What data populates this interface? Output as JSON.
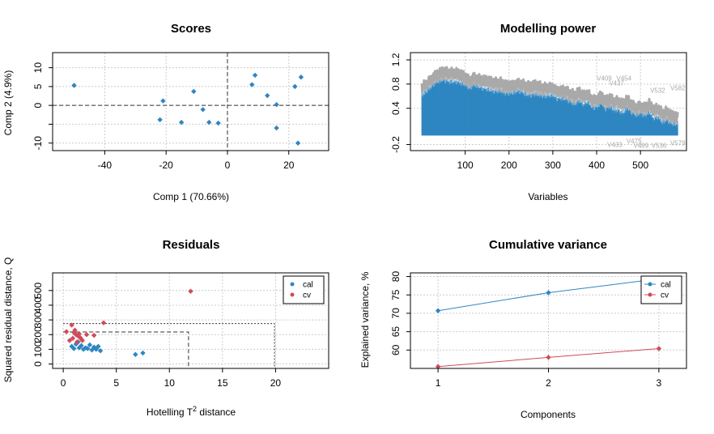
{
  "colors": {
    "cal": "#2e86c1",
    "cv": "#d14a5a",
    "bar": "#2e86c1",
    "line_gray": "#a9a9a9"
  },
  "chart_data": [
    {
      "id": "scores",
      "type": "scatter",
      "title": "Scores",
      "xlabel": "Comp 1 (70.66%)",
      "ylabel": "Comp 2 (4.9%)",
      "xlim": [
        -57,
        33
      ],
      "ylim": [
        -12,
        14
      ],
      "xticks": [
        -40,
        -20,
        0,
        20
      ],
      "yticks": [
        -10,
        -5,
        0,
        5,
        10
      ],
      "ytick_labels": [
        "-10",
        "",
        "0",
        "5",
        "10"
      ],
      "grid": true,
      "reference_lines": {
        "x": 0,
        "y": 0
      },
      "points": [
        {
          "x": -50,
          "y": 5.3
        },
        {
          "x": -21,
          "y": 1.2
        },
        {
          "x": -22,
          "y": -3.8
        },
        {
          "x": -15,
          "y": -4.5
        },
        {
          "x": -11,
          "y": 3.7
        },
        {
          "x": -8,
          "y": -1.1
        },
        {
          "x": -6,
          "y": -4.5
        },
        {
          "x": -3,
          "y": -4.7
        },
        {
          "x": 8,
          "y": 5.5
        },
        {
          "x": 9,
          "y": 8.0
        },
        {
          "x": 13,
          "y": 2.6
        },
        {
          "x": 16,
          "y": 0.2
        },
        {
          "x": 16,
          "y": -6.0
        },
        {
          "x": 22,
          "y": 5.0
        },
        {
          "x": 24,
          "y": 7.5
        },
        {
          "x": 23,
          "y": -10.0
        }
      ]
    },
    {
      "id": "modelling-power",
      "type": "bar",
      "title": "Modelling power",
      "xlabel": "Variables",
      "ylabel": "",
      "xlim": [
        -25,
        605
      ],
      "ylim": [
        -0.3,
        1.32
      ],
      "xticks": [
        100,
        200,
        300,
        400,
        500
      ],
      "yticks": [
        -0.2,
        0.4,
        0.8,
        1.2
      ],
      "ytick_labels": [
        "-0.2",
        "0.4",
        "0.8",
        "1.2"
      ],
      "grid": true,
      "n_variables": 585,
      "profile": {
        "x": [
          1,
          10,
          20,
          30,
          40,
          50,
          60,
          70,
          80,
          90,
          100,
          110,
          120,
          130,
          140,
          150,
          160,
          170,
          180,
          190,
          200,
          210,
          220,
          230,
          240,
          250,
          260,
          270,
          280,
          290,
          300,
          310,
          320,
          330,
          340,
          350,
          360,
          370,
          380,
          390,
          400,
          410,
          420,
          430,
          440,
          450,
          460,
          470,
          480,
          490,
          500,
          510,
          520,
          530,
          540,
          550,
          560,
          570,
          585
        ],
        "y": [
          0.63,
          0.68,
          0.75,
          0.82,
          0.86,
          0.88,
          0.86,
          0.85,
          0.85,
          0.83,
          0.8,
          0.74,
          0.8,
          0.77,
          0.74,
          0.73,
          0.7,
          0.69,
          0.7,
          0.66,
          0.66,
          0.67,
          0.7,
          0.68,
          0.64,
          0.63,
          0.65,
          0.63,
          0.61,
          0.62,
          0.63,
          0.57,
          0.58,
          0.56,
          0.52,
          0.48,
          0.54,
          0.47,
          0.52,
          0.42,
          0.43,
          0.5,
          0.4,
          0.44,
          0.38,
          0.38,
          0.33,
          0.42,
          0.34,
          0.3,
          0.33,
          0.29,
          0.35,
          0.24,
          0.27,
          0.18,
          0.22,
          0.16,
          0.15
        ]
      },
      "labels": [
        {
          "text": "V409",
          "x": 400,
          "y": 0.86
        },
        {
          "text": "V454",
          "x": 445,
          "y": 0.86
        },
        {
          "text": "V437",
          "x": 428,
          "y": 0.78
        },
        {
          "text": "V532",
          "x": 522,
          "y": 0.66
        },
        {
          "text": "V582",
          "x": 568,
          "y": 0.7
        },
        {
          "text": "V433",
          "x": 424,
          "y": -0.24
        },
        {
          "text": "V475",
          "x": 468,
          "y": -0.18
        },
        {
          "text": "V489",
          "x": 484,
          "y": -0.25
        },
        {
          "text": "V536",
          "x": 525,
          "y": -0.25
        },
        {
          "text": "V579",
          "x": 568,
          "y": -0.21
        }
      ]
    },
    {
      "id": "residuals",
      "type": "scatter",
      "title": "Residuals",
      "xlabel": "Hotelling T",
      "xlabel_sup": "2",
      "xlabel_suffix": " distance",
      "ylabel": "Squared residual distance, Q",
      "xlim": [
        -1,
        25
      ],
      "ylim": [
        -30,
        620
      ],
      "xticks": [
        0,
        5,
        10,
        15,
        20
      ],
      "yticks": [
        0,
        100,
        200,
        300,
        400,
        500
      ],
      "ytick_labels": [
        "0",
        "100",
        "200",
        "300",
        "400",
        "500"
      ],
      "grid": true,
      "legend": {
        "position": "top-right",
        "entries": [
          "cal",
          "cv"
        ]
      },
      "limits": [
        {
          "x": 11.8,
          "y": 218
        },
        {
          "x": 19.9,
          "y": 275
        }
      ],
      "series": [
        {
          "name": "cal",
          "points": [
            {
              "x": 0.8,
              "y": 120
            },
            {
              "x": 1.0,
              "y": 105
            },
            {
              "x": 1.2,
              "y": 135
            },
            {
              "x": 1.4,
              "y": 150
            },
            {
              "x": 1.5,
              "y": 110
            },
            {
              "x": 1.7,
              "y": 125
            },
            {
              "x": 1.9,
              "y": 100
            },
            {
              "x": 2.1,
              "y": 110
            },
            {
              "x": 2.3,
              "y": 105
            },
            {
              "x": 2.5,
              "y": 130
            },
            {
              "x": 2.7,
              "y": 95
            },
            {
              "x": 2.9,
              "y": 115
            },
            {
              "x": 3.1,
              "y": 100
            },
            {
              "x": 3.3,
              "y": 120
            },
            {
              "x": 3.5,
              "y": 90
            },
            {
              "x": 6.8,
              "y": 65
            },
            {
              "x": 7.5,
              "y": 75
            }
          ]
        },
        {
          "name": "cv",
          "points": [
            {
              "x": 0.3,
              "y": 220
            },
            {
              "x": 0.6,
              "y": 160
            },
            {
              "x": 0.8,
              "y": 265
            },
            {
              "x": 0.9,
              "y": 175
            },
            {
              "x": 1.0,
              "y": 215
            },
            {
              "x": 1.1,
              "y": 230
            },
            {
              "x": 1.2,
              "y": 200
            },
            {
              "x": 1.3,
              "y": 150
            },
            {
              "x": 1.4,
              "y": 190
            },
            {
              "x": 1.5,
              "y": 205
            },
            {
              "x": 1.6,
              "y": 180
            },
            {
              "x": 1.7,
              "y": 170
            },
            {
              "x": 1.8,
              "y": 160
            },
            {
              "x": 2.2,
              "y": 200
            },
            {
              "x": 2.9,
              "y": 195
            },
            {
              "x": 3.8,
              "y": 280
            },
            {
              "x": 12.0,
              "y": 495
            }
          ]
        }
      ]
    },
    {
      "id": "cumulative-variance",
      "type": "line",
      "title": "Cumulative variance",
      "xlabel": "Components",
      "ylabel": "Explained variance, %",
      "xlim": [
        0.75,
        3.25
      ],
      "ylim": [
        55,
        81
      ],
      "xticks": [
        1,
        2,
        3
      ],
      "yticks": [
        60,
        65,
        70,
        75,
        80
      ],
      "ytick_labels": [
        "60",
        "65",
        "70",
        "75",
        "80"
      ],
      "grid": true,
      "legend": {
        "position": "top-right",
        "entries": [
          "cal",
          "cv"
        ]
      },
      "categories": [
        1,
        2,
        3
      ],
      "series": [
        {
          "name": "cal",
          "values": [
            70.7,
            75.6,
            79.4
          ]
        },
        {
          "name": "cv",
          "values": [
            55.5,
            58.0,
            60.4
          ]
        }
      ]
    }
  ]
}
